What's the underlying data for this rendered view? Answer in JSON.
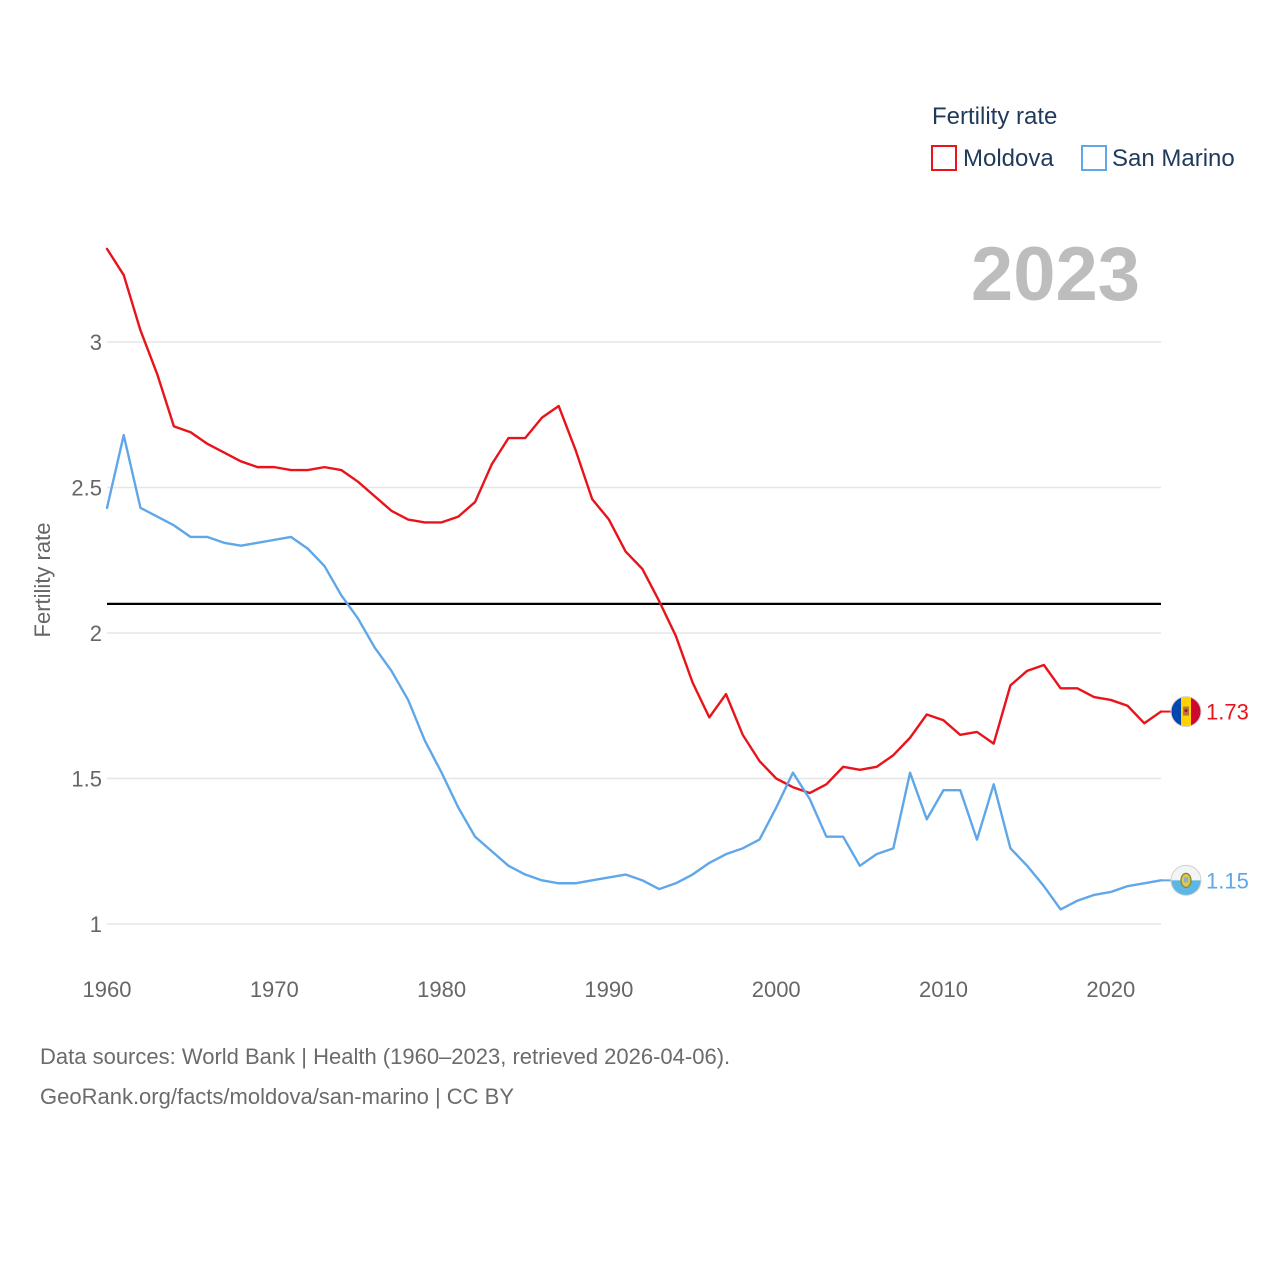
{
  "chart_data": {
    "type": "line",
    "title": "",
    "current_year": "2023",
    "xlabel": "",
    "ylabel": "Fertility rate",
    "xlim": [
      1960,
      2023
    ],
    "ylim": [
      0.9,
      3.35
    ],
    "x_ticks": [
      1960,
      1970,
      1980,
      1990,
      2000,
      2010,
      2020
    ],
    "y_ticks": [
      1,
      1.5,
      2,
      2.5,
      3
    ],
    "x_tick_labels": [
      "1960",
      "1970",
      "1980",
      "1990",
      "2000",
      "2010",
      "2020"
    ],
    "y_tick_labels": [
      "1",
      "1.5",
      "2",
      "2.5",
      "3"
    ],
    "reference_line": 2.1,
    "grid": true,
    "legend": {
      "title": "Fertility rate",
      "position": "top-right"
    },
    "x": [
      1960,
      1961,
      1962,
      1963,
      1964,
      1965,
      1966,
      1967,
      1968,
      1969,
      1970,
      1971,
      1972,
      1973,
      1974,
      1975,
      1976,
      1977,
      1978,
      1979,
      1980,
      1981,
      1982,
      1983,
      1984,
      1985,
      1986,
      1987,
      1988,
      1989,
      1990,
      1991,
      1992,
      1993,
      1994,
      1995,
      1996,
      1997,
      1998,
      1999,
      2000,
      2001,
      2002,
      2003,
      2004,
      2005,
      2006,
      2007,
      2008,
      2009,
      2010,
      2011,
      2012,
      2013,
      2014,
      2015,
      2016,
      2017,
      2018,
      2019,
      2020,
      2021,
      2022,
      2023
    ],
    "series": [
      {
        "name": "Moldova",
        "color": "#e8141b",
        "end_label": "1.73",
        "flag_icon": "moldova-flag-icon",
        "values": [
          3.32,
          3.23,
          3.04,
          2.89,
          2.71,
          2.69,
          2.65,
          2.62,
          2.59,
          2.57,
          2.57,
          2.56,
          2.56,
          2.57,
          2.56,
          2.52,
          2.47,
          2.42,
          2.39,
          2.38,
          2.38,
          2.4,
          2.45,
          2.58,
          2.67,
          2.67,
          2.74,
          2.78,
          2.63,
          2.46,
          2.39,
          2.28,
          2.22,
          2.11,
          1.99,
          1.83,
          1.71,
          1.79,
          1.65,
          1.56,
          1.5,
          1.47,
          1.45,
          1.48,
          1.54,
          1.53,
          1.54,
          1.58,
          1.64,
          1.72,
          1.7,
          1.65,
          1.66,
          1.62,
          1.82,
          1.87,
          1.89,
          1.81,
          1.81,
          1.78,
          1.77,
          1.75,
          1.69,
          1.73
        ]
      },
      {
        "name": "San Marino",
        "color": "#5fa7e8",
        "end_label": "1.15",
        "flag_icon": "san-marino-flag-icon",
        "values": [
          2.43,
          2.68,
          2.43,
          2.4,
          2.37,
          2.33,
          2.33,
          2.31,
          2.3,
          2.31,
          2.32,
          2.33,
          2.29,
          2.23,
          2.13,
          2.05,
          1.95,
          1.87,
          1.77,
          1.63,
          1.52,
          1.4,
          1.3,
          1.25,
          1.2,
          1.17,
          1.15,
          1.14,
          1.14,
          1.15,
          1.16,
          1.17,
          1.15,
          1.12,
          1.14,
          1.17,
          1.21,
          1.24,
          1.26,
          1.29,
          1.4,
          1.52,
          1.43,
          1.3,
          1.3,
          1.2,
          1.24,
          1.26,
          1.52,
          1.36,
          1.46,
          1.46,
          1.29,
          1.48,
          1.26,
          1.2,
          1.13,
          1.05,
          1.08,
          1.1,
          1.11,
          1.13,
          1.14,
          1.15
        ]
      }
    ]
  },
  "footer": {
    "line1": "Data sources: World Bank | Health (1960–2023, retrieved 2026-04-06).",
    "line2": "GeoRank.org/facts/moldova/san-marino | CC BY"
  }
}
